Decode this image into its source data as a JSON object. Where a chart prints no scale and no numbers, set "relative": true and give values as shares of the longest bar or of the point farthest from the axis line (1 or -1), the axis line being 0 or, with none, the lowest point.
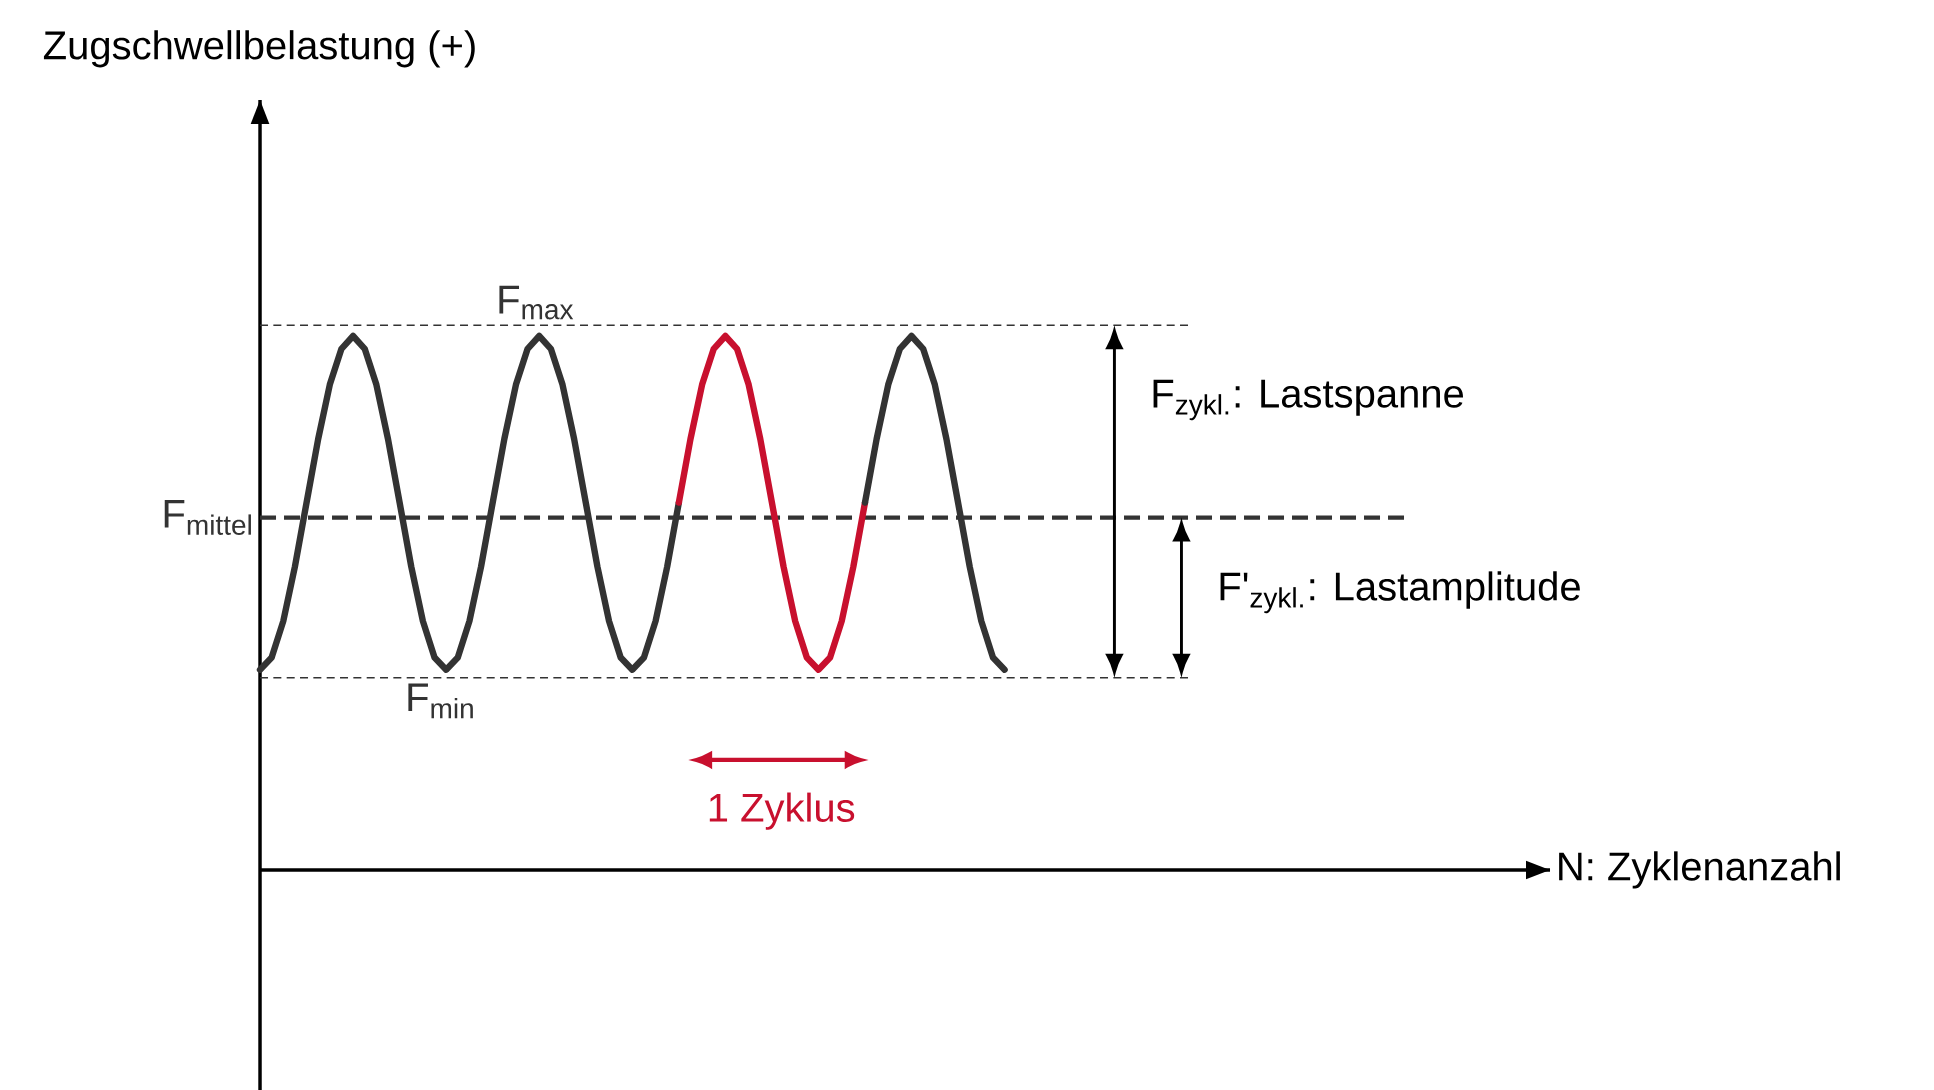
{
  "chart_data": {
    "type": "line",
    "relative": true,
    "marker": "none",
    "line_style": "solid",
    "categories": [
      null,
      null,
      null,
      null,
      null,
      null,
      null,
      null,
      null,
      null,
      null,
      null,
      null,
      null,
      null,
      null,
      null,
      null,
      null,
      null,
      null,
      null,
      null,
      null,
      null,
      null,
      null,
      null,
      null,
      null,
      null,
      null,
      null,
      null,
      null,
      null,
      null,
      null,
      null,
      null,
      null,
      null,
      null,
      null,
      null,
      null,
      null,
      null,
      null,
      null,
      null,
      null,
      null,
      null,
      null,
      null,
      null,
      null,
      null,
      null,
      null,
      null,
      null,
      null,
      null
    ],
    "series": [
      {
        "color": "#333333",
        "values": [
          0.375,
          0.398,
          0.466,
          0.568,
          0.688,
          0.807,
          0.909,
          0.976,
          1.0,
          0.976,
          0.909,
          0.807,
          0.688,
          0.568,
          0.466,
          0.398,
          0.375,
          0.398,
          0.466,
          0.568,
          0.688,
          0.807,
          0.909,
          0.976,
          1.0,
          0.976,
          0.909,
          0.807,
          0.688,
          0.568,
          0.466,
          0.398,
          0.375,
          0.398,
          0.466,
          0.568,
          0.688,
          null,
          null,
          null,
          null,
          null,
          null,
          null,
          null,
          null,
          null,
          null,
          null,
          null,
          null,
          null,
          null,
          null,
          null,
          null,
          null,
          null,
          null,
          null,
          null,
          null,
          null,
          null,
          null
        ]
      },
      {
        "color": "#c8102e",
        "values": [
          null,
          null,
          null,
          null,
          null,
          null,
          null,
          null,
          null,
          null,
          null,
          null,
          null,
          null,
          null,
          null,
          null,
          null,
          null,
          null,
          null,
          null,
          null,
          null,
          null,
          null,
          null,
          null,
          null,
          null,
          null,
          null,
          null,
          null,
          null,
          null,
          0.688,
          0.807,
          0.909,
          0.976,
          1.0,
          0.976,
          0.909,
          0.807,
          0.688,
          0.568,
          0.466,
          0.398,
          0.375,
          0.398,
          0.466,
          0.568,
          0.688,
          null,
          null,
          null,
          null,
          null,
          null,
          null,
          null,
          null,
          null,
          null,
          null
        ]
      },
      {
        "color": "#333333",
        "values": [
          null,
          null,
          null,
          null,
          null,
          null,
          null,
          null,
          null,
          null,
          null,
          null,
          null,
          null,
          null,
          null,
          null,
          null,
          null,
          null,
          null,
          null,
          null,
          null,
          null,
          null,
          null,
          null,
          null,
          null,
          null,
          null,
          null,
          null,
          null,
          null,
          null,
          null,
          null,
          null,
          null,
          null,
          null,
          null,
          null,
          null,
          null,
          null,
          null,
          null,
          null,
          null,
          0.688,
          0.807,
          0.909,
          0.976,
          1.0,
          0.976,
          0.909,
          0.807,
          0.688,
          0.568,
          0.466,
          0.398,
          0.375
        ]
      }
    ],
    "ref_lines": [
      {
        "axis": "y",
        "value": 1.02,
        "label": "F$_{max}$",
        "line_style": "dashed",
        "color": "#333333"
      },
      {
        "axis": "y",
        "value": 0.66,
        "label": "F$_{mittel}$",
        "line_style": "dashed",
        "color": "#333333"
      },
      {
        "axis": "y",
        "value": 0.36,
        "label": "F$_{min}$",
        "line_style": "dashed",
        "color": "#333333"
      }
    ],
    "annotations": [
      "F$_{zykl.}$: Lastspanne",
      "F'$_{zykl.}$: Lastamplitude",
      "1 Zyklus",
      "N: Zyklenanzahl",
      "Zugschwellbelastung (+)"
    ]
  }
}
